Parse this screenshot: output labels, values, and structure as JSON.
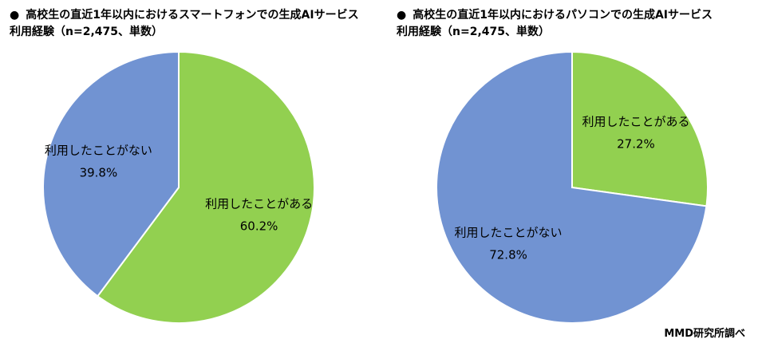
{
  "charts": [
    {
      "title_line1": "高校生の直近1年以内におけるスマートフォンでの生成AIサービス",
      "title_line2": "利用経験（n=2,475、単数）"
    },
    {
      "title_line1": "高校生の直近1年以内におけるパソコンでの生成AIサービス",
      "title_line2": "利用経験（n=2,475、単数）"
    }
  ],
  "bullet": "●",
  "source": "MMD研究所調べ",
  "colors": {
    "used": "#92d050",
    "not_used": "#7193d2",
    "border": "#ffffff"
  },
  "chart_data": [
    {
      "type": "pie",
      "title": "高校生の直近1年以内におけるスマートフォンでの生成AIサービス利用経験（n=2,475、単数）",
      "slices": [
        {
          "label": "利用したことがある",
          "value": 60.2,
          "value_label": "60.2%",
          "color": "#92d050"
        },
        {
          "label": "利用したことがない",
          "value": 39.8,
          "value_label": "39.8%",
          "color": "#7193d2"
        }
      ]
    },
    {
      "type": "pie",
      "title": "高校生の直近1年以内におけるパソコンでの生成AIサービス利用経験（n=2,475、単数）",
      "slices": [
        {
          "label": "利用したことがある",
          "value": 27.2,
          "value_label": "27.2%",
          "color": "#92d050"
        },
        {
          "label": "利用したことがない",
          "value": 72.8,
          "value_label": "72.8%",
          "color": "#7193d2"
        }
      ]
    }
  ]
}
